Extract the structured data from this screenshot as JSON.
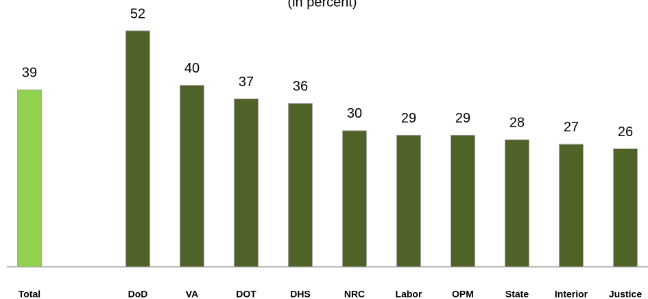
{
  "chart_data": {
    "type": "bar",
    "subtitle": "(in percent)",
    "categories": [
      "Total",
      null,
      "DoD",
      "VA",
      "DOT",
      "DHS",
      "NRC",
      "Labor",
      "OPM",
      "State",
      "Interior",
      "Justice"
    ],
    "values": [
      39,
      null,
      52,
      40,
      37,
      36,
      30,
      29,
      29,
      28,
      27,
      26
    ],
    "colors": [
      "#92d050",
      null,
      "#4f6228",
      "#4f6228",
      "#4f6228",
      "#4f6228",
      "#4f6228",
      "#4f6228",
      "#4f6228",
      "#4f6228",
      "#4f6228",
      "#4f6228"
    ]
  }
}
